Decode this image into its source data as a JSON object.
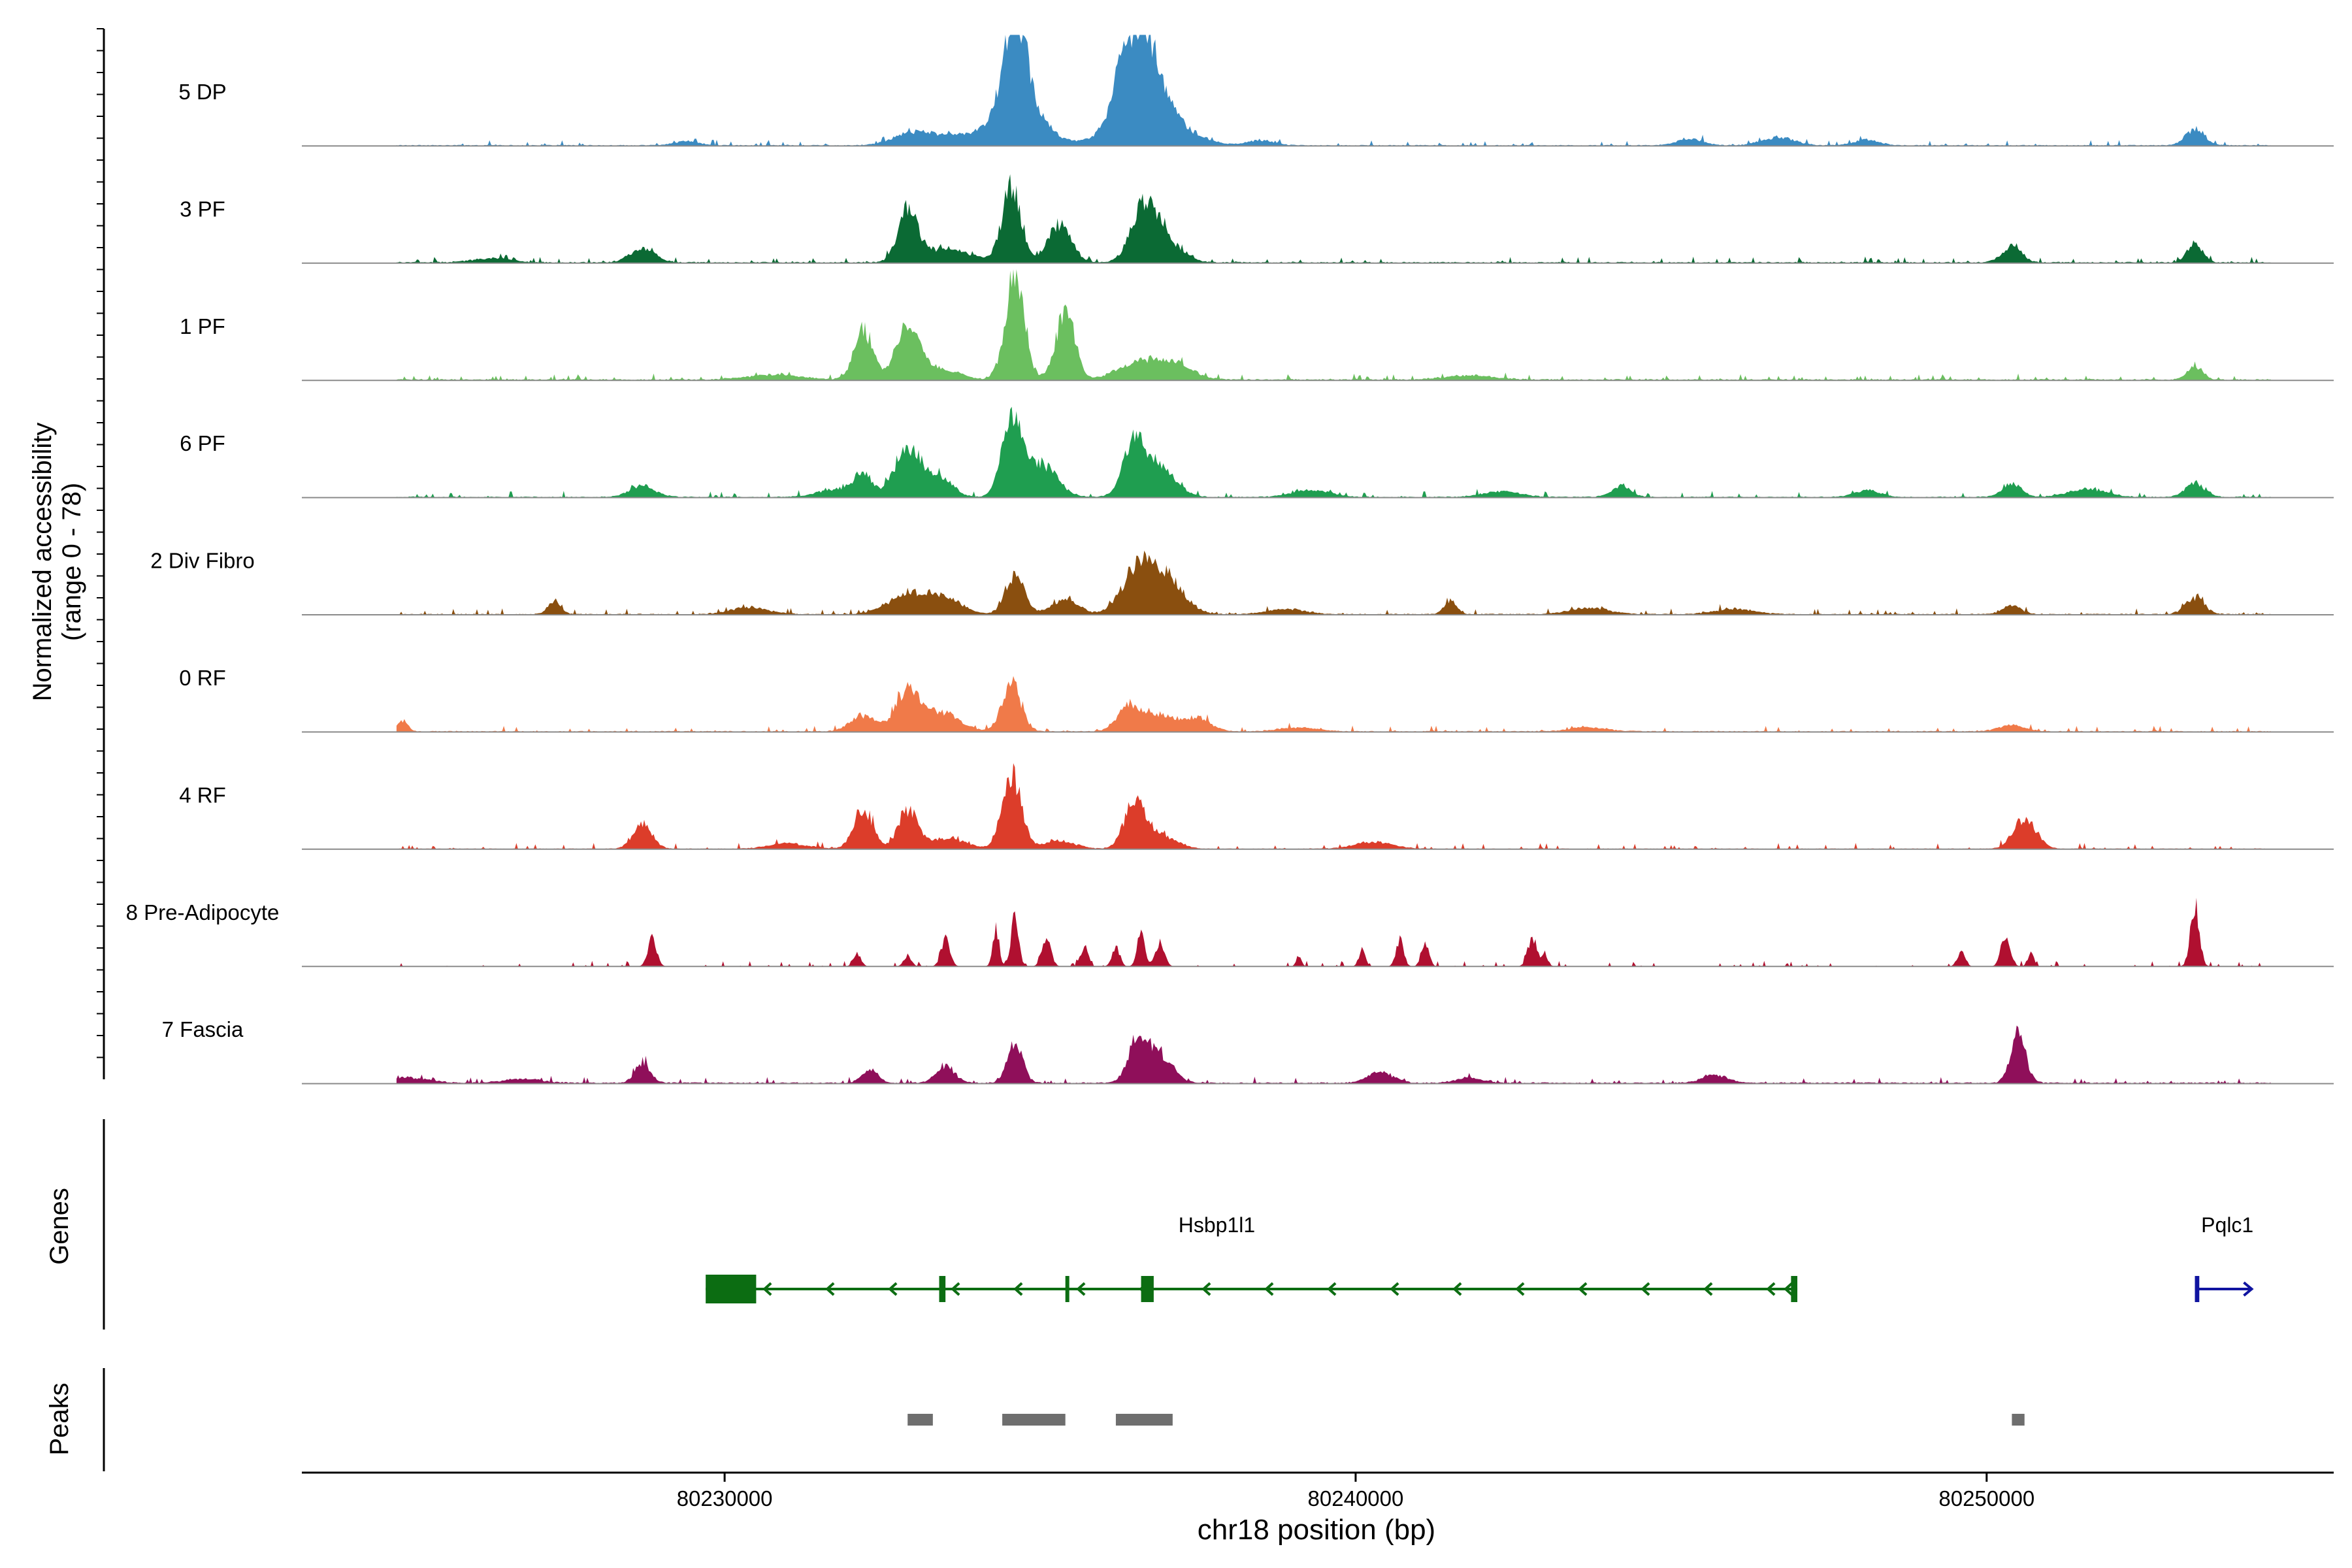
{
  "chart_data": {
    "type": "area",
    "title": "",
    "ylabel": [
      "Normalized accessibility",
      "(range 0 - 78)"
    ],
    "xlabel": "chr18 position (bp)",
    "xlim": [
      80223300,
      80255500
    ],
    "ylim": [
      0,
      78
    ],
    "x_ticks": [
      80230000,
      80240000,
      80250000
    ],
    "x_tick_labels": [
      "80230000",
      "80240000",
      "80250000"
    ],
    "signal_start": 80224800,
    "signal_end": 80254500,
    "tracks": [
      {
        "name": "5 DP",
        "color": "#3B8BC2",
        "baseline": 0.4,
        "peaks": [
          [
            80234600,
            62,
            160
          ],
          [
            80234650,
            40,
            350
          ],
          [
            80236300,
            35,
            150
          ],
          [
            80236650,
            52,
            220
          ],
          [
            80236700,
            30,
            500
          ],
          [
            80233000,
            10,
            300
          ],
          [
            80233700,
            7,
            300
          ],
          [
            80229400,
            3,
            200
          ],
          [
            80246700,
            6,
            250
          ],
          [
            80245300,
            5,
            200
          ],
          [
            80253300,
            12,
            150
          ],
          [
            80248100,
            4,
            200
          ],
          [
            80238500,
            4,
            200
          ]
        ]
      },
      {
        "name": "3 PF",
        "color": "#0B6A34",
        "baseline": 0.5,
        "peaks": [
          [
            80232900,
            38,
            150
          ],
          [
            80234550,
            55,
            150
          ],
          [
            80235300,
            28,
            180
          ],
          [
            80236650,
            40,
            200
          ],
          [
            80237000,
            15,
            250
          ],
          [
            80233500,
            10,
            400
          ],
          [
            80228700,
            10,
            200
          ],
          [
            80250400,
            12,
            150
          ],
          [
            80253300,
            14,
            120
          ],
          [
            80226300,
            3,
            300
          ]
        ]
      },
      {
        "name": "1 PF",
        "color": "#6BBF5F",
        "baseline": 0.5,
        "peaks": [
          [
            80232200,
            36,
            150
          ],
          [
            80232900,
            42,
            180
          ],
          [
            80234600,
            78,
            150
          ],
          [
            80235400,
            50,
            150
          ],
          [
            80236500,
            12,
            300
          ],
          [
            80237100,
            12,
            300
          ],
          [
            80233400,
            8,
            300
          ],
          [
            80253300,
            10,
            120
          ],
          [
            80230800,
            4,
            400
          ],
          [
            80241800,
            3,
            400
          ]
        ]
      },
      {
        "name": "6 PF",
        "color": "#1F9E50",
        "baseline": 0.4,
        "peaks": [
          [
            80232200,
            15,
            150
          ],
          [
            80232900,
            38,
            200
          ],
          [
            80233400,
            15,
            200
          ],
          [
            80234550,
            52,
            160
          ],
          [
            80235000,
            25,
            250
          ],
          [
            80236500,
            40,
            180
          ],
          [
            80236900,
            20,
            250
          ],
          [
            80228700,
            8,
            200
          ],
          [
            80231800,
            6,
            300
          ],
          [
            80250400,
            10,
            150
          ],
          [
            80253300,
            10,
            150
          ],
          [
            80244200,
            8,
            150
          ],
          [
            80251600,
            6,
            300
          ],
          [
            80248100,
            5,
            200
          ],
          [
            80239300,
            5,
            300
          ],
          [
            80242300,
            4,
            300
          ]
        ]
      },
      {
        "name": "2 Div Fibro",
        "color": "#8A4F0F",
        "baseline": 0.4,
        "peaks": [
          [
            80232900,
            15,
            300
          ],
          [
            80233500,
            12,
            250
          ],
          [
            80234600,
            30,
            150
          ],
          [
            80235400,
            12,
            200
          ],
          [
            80236550,
            32,
            250
          ],
          [
            80237000,
            24,
            280
          ],
          [
            80227300,
            10,
            100
          ],
          [
            80241500,
            10,
            100
          ],
          [
            80253300,
            12,
            150
          ],
          [
            80250400,
            6,
            150
          ],
          [
            80230400,
            5,
            300
          ],
          [
            80246000,
            4,
            300
          ],
          [
            80238900,
            4,
            300
          ],
          [
            80243700,
            5,
            300
          ]
        ]
      },
      {
        "name": "0 RF",
        "color": "#F07A49",
        "baseline": 0.4,
        "peaks": [
          [
            80232900,
            30,
            180
          ],
          [
            80233400,
            14,
            300
          ],
          [
            80234550,
            35,
            150
          ],
          [
            80232200,
            12,
            200
          ],
          [
            80236400,
            18,
            180
          ],
          [
            80236900,
            12,
            250
          ],
          [
            80237500,
            10,
            200
          ],
          [
            80224900,
            8,
            80
          ],
          [
            80250400,
            5,
            200
          ],
          [
            80239100,
            3,
            300
          ],
          [
            80243700,
            3,
            300
          ]
        ]
      },
      {
        "name": "4 RF",
        "color": "#DC3D2A",
        "baseline": 0.3,
        "peaks": [
          [
            80232200,
            30,
            150
          ],
          [
            80232900,
            28,
            150
          ],
          [
            80234550,
            55,
            150
          ],
          [
            80236500,
            35,
            160
          ],
          [
            80236900,
            10,
            250
          ],
          [
            80228700,
            18,
            150
          ],
          [
            80233500,
            8,
            300
          ],
          [
            80235300,
            6,
            250
          ],
          [
            80250600,
            22,
            180
          ],
          [
            80240300,
            5,
            300
          ],
          [
            80231000,
            4,
            300
          ]
        ]
      },
      {
        "name": "8 Pre-Adipocyte",
        "color": "#B01030",
        "baseline": 0,
        "peaks": [
          [
            80228850,
            20,
            70
          ],
          [
            80232100,
            10,
            60
          ],
          [
            80232900,
            8,
            60
          ],
          [
            80233500,
            20,
            70
          ],
          [
            80234300,
            28,
            50
          ],
          [
            80234600,
            38,
            60
          ],
          [
            80235100,
            22,
            70
          ],
          [
            80235700,
            15,
            60
          ],
          [
            80236200,
            15,
            60
          ],
          [
            80236600,
            28,
            60
          ],
          [
            80236900,
            18,
            70
          ],
          [
            80240100,
            12,
            50
          ],
          [
            80240700,
            20,
            60
          ],
          [
            80241100,
            18,
            60
          ],
          [
            80242800,
            22,
            70
          ],
          [
            80249600,
            12,
            60
          ],
          [
            80250300,
            25,
            70
          ],
          [
            80250700,
            10,
            50
          ],
          [
            80253300,
            45,
            70
          ],
          [
            80243000,
            8,
            50
          ],
          [
            80239100,
            8,
            40
          ]
        ]
      },
      {
        "name": "7 Fascia",
        "color": "#8F0F5A",
        "baseline": 0.5,
        "peaks": [
          [
            80228700,
            15,
            120
          ],
          [
            80232300,
            10,
            120
          ],
          [
            80233500,
            12,
            150
          ],
          [
            80234600,
            30,
            120
          ],
          [
            80236550,
            32,
            150
          ],
          [
            80236900,
            20,
            200
          ],
          [
            80250500,
            35,
            120
          ],
          [
            80245700,
            6,
            200
          ],
          [
            80240400,
            8,
            200
          ],
          [
            80225000,
            4,
            300
          ],
          [
            80226800,
            3,
            300
          ],
          [
            80241800,
            4,
            200
          ]
        ]
      }
    ],
    "genes": [
      {
        "name": "Hsbp1l1",
        "strand": "-",
        "color": "#0C6D12",
        "start": 80229700,
        "end": 80247000,
        "exons": [
          [
            80229700,
            80230500
          ],
          [
            80233400,
            80233500
          ],
          [
            80235400,
            80235460
          ],
          [
            80236600,
            80236800
          ],
          [
            80246900,
            80247000
          ]
        ]
      },
      {
        "name": "Pqlc1",
        "strand": "+",
        "color": "#1014A0",
        "start": 80253300,
        "end": 80254200,
        "exons": [
          [
            80253300,
            80253370
          ]
        ]
      }
    ],
    "peak_regions": [
      [
        80232900,
        80233300
      ],
      [
        80234400,
        80235400
      ],
      [
        80236200,
        80237100
      ],
      [
        80250400,
        80250600
      ]
    ],
    "genes_label": "Genes",
    "peaks_label": "Peaks"
  }
}
